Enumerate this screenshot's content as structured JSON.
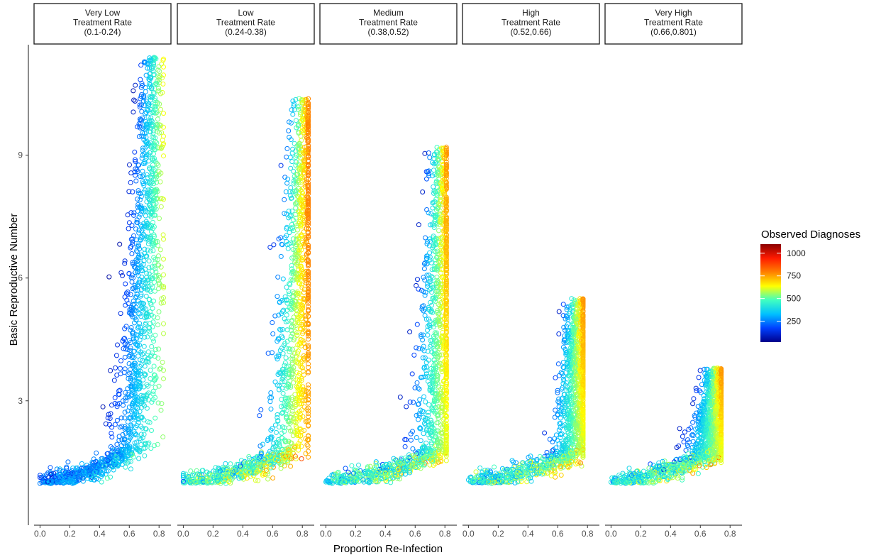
{
  "chart_data": {
    "type": "scatter",
    "xlabel": "Proportion Re-Infection",
    "ylabel": "Basic Reproductive Number",
    "x_ticks": [
      "0.0",
      "0.2",
      "0.4",
      "0.6",
      "0.8"
    ],
    "y_ticks": [
      "3",
      "6",
      "9"
    ],
    "xlim": [
      -0.04,
      0.88
    ],
    "ylim": [
      0.1,
      11.7
    ],
    "grid": false,
    "legend": {
      "title": "Observed Diagnoses",
      "position": "right",
      "breaks": [
        1000,
        750,
        500,
        250
      ],
      "labels": [
        "1000",
        "750",
        "500",
        "250"
      ],
      "range": [
        20,
        1100
      ],
      "colors": [
        "#00008b",
        "#0040ff",
        "#00c0ff",
        "#40ffc0",
        "#ffff00",
        "#ff8000",
        "#ff1a00",
        "#8b0000"
      ]
    },
    "panels": [
      {
        "strip": [
          "Very Low",
          "Treatment Rate",
          "(0.1-0.24)"
        ],
        "x_min": 0.0,
        "x_max": 0.83,
        "y_min": 1.0,
        "y_max": 11.4,
        "rise_x": 0.58,
        "rise_x_end": 0.76,
        "diagnoses_range": [
          50,
          700
        ]
      },
      {
        "strip": [
          "Low",
          "Treatment Rate",
          "(0.24-0.38)"
        ],
        "x_min": 0.0,
        "x_max": 0.84,
        "y_min": 1.0,
        "y_max": 10.4,
        "rise_x": 0.69,
        "rise_x_end": 0.82,
        "diagnoses_range": [
          150,
          1100
        ]
      },
      {
        "strip": [
          "Medium",
          "Treatment Rate",
          "(0.38,0.52)"
        ],
        "x_min": 0.0,
        "x_max": 0.81,
        "y_min": 1.0,
        "y_max": 9.2,
        "rise_x": 0.74,
        "rise_x_end": 0.79,
        "diagnoses_range": [
          100,
          1100
        ]
      },
      {
        "strip": [
          "High",
          "Treatment Rate",
          "(0.52,0.66)"
        ],
        "x_min": 0.0,
        "x_max": 0.77,
        "y_min": 1.0,
        "y_max": 5.5,
        "rise_x": 0.71,
        "rise_x_end": 0.75,
        "diagnoses_range": [
          100,
          1100
        ]
      },
      {
        "strip": [
          "Very High",
          "Treatment Rate",
          "(0.66,0.801)"
        ],
        "x_min": 0.0,
        "x_max": 0.74,
        "y_min": 1.0,
        "y_max": 3.8,
        "rise_x": 0.67,
        "rise_x_end": 0.72,
        "diagnoses_range": [
          100,
          1100
        ]
      }
    ]
  }
}
